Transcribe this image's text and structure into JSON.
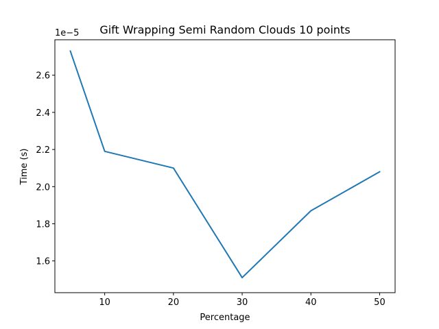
{
  "chart_data": {
    "type": "line",
    "title": "Gift Wrapping Semi Random Clouds 10 points",
    "xlabel": "Percentage",
    "ylabel": "Time (s)",
    "y_offset_label": "1e−5",
    "x": [
      5,
      10,
      20,
      30,
      40,
      50
    ],
    "series": [
      {
        "values": [
          2.73e-05,
          2.19e-05,
          2.1e-05,
          1.51e-05,
          1.87e-05,
          2.08e-05
        ],
        "color": "#1f77b4"
      }
    ],
    "xlim": [
      2.75,
      52.25
    ],
    "ylim": [
      1.429e-05,
      2.791e-05
    ],
    "x_ticks": [
      10,
      20,
      30,
      40,
      50
    ],
    "x_tick_labels": [
      "10",
      "20",
      "30",
      "40",
      "50"
    ],
    "y_ticks": [
      1.6e-05,
      1.8e-05,
      2e-05,
      2.2e-05,
      2.4e-05,
      2.6e-05
    ],
    "y_tick_labels": [
      "1.6",
      "1.8",
      "2.0",
      "2.2",
      "2.4",
      "2.6"
    ],
    "grid": false,
    "legend": "none"
  }
}
